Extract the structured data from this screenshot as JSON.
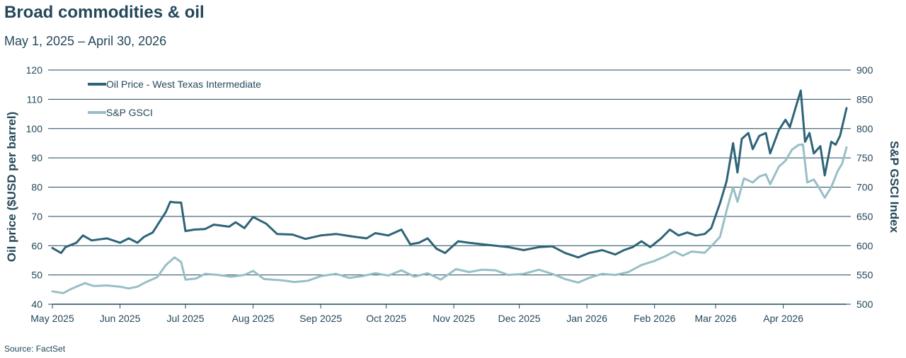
{
  "header": {
    "title": "Broad commodities & oil",
    "subtitle": "May 1, 2025 – April 30, 2026"
  },
  "footer": {
    "source": "Source: FactSet"
  },
  "colors": {
    "oil": "#2e6478",
    "gsci": "#98bfc6",
    "grid": "#1f4a5c",
    "text": "#24485a"
  },
  "chart_data": {
    "type": "line",
    "y_left": {
      "label": "Oil price ($USD per barrel)",
      "range": [
        40,
        120
      ],
      "ticks": [
        40,
        50,
        60,
        70,
        80,
        90,
        100,
        110,
        120
      ]
    },
    "y_right": {
      "label": "S&P GSCI Index",
      "range": [
        500,
        900
      ],
      "ticks": [
        500,
        550,
        600,
        650,
        700,
        750,
        800,
        850,
        900
      ]
    },
    "x_range": [
      "2025-05-01",
      "2026-04-30"
    ],
    "x_ticks": [
      {
        "date": "2025-05-01",
        "label": "May 2025"
      },
      {
        "date": "2025-06-01",
        "label": "Jun 2025"
      },
      {
        "date": "2025-07-01",
        "label": "Jul 2025"
      },
      {
        "date": "2025-08-01",
        "label": "Aug 2025"
      },
      {
        "date": "2025-09-01",
        "label": "Sep 2025"
      },
      {
        "date": "2025-10-01",
        "label": "Oct 2025"
      },
      {
        "date": "2025-11-01",
        "label": "Nov 2025"
      },
      {
        "date": "2025-12-01",
        "label": "Dec 2025"
      },
      {
        "date": "2026-01-01",
        "label": "Jan 2026"
      },
      {
        "date": "2026-02-01",
        "label": "Feb 2026"
      },
      {
        "date": "2026-03-01",
        "label": "Mar 2026"
      },
      {
        "date": "2026-04-01",
        "label": "Apr 2026"
      }
    ],
    "grid": true,
    "legend_position": "top-left",
    "series": [
      {
        "name": "Oil Price - West Texas Intermediate",
        "axis": "left",
        "points": [
          [
            "2025-05-01",
            59.2
          ],
          [
            "2025-05-05",
            57.5
          ],
          [
            "2025-05-07",
            59.5
          ],
          [
            "2025-05-12",
            61.0
          ],
          [
            "2025-05-15",
            63.5
          ],
          [
            "2025-05-19",
            61.8
          ],
          [
            "2025-05-26",
            62.5
          ],
          [
            "2025-06-01",
            61.0
          ],
          [
            "2025-06-05",
            62.5
          ],
          [
            "2025-06-09",
            61.0
          ],
          [
            "2025-06-12",
            63.0
          ],
          [
            "2025-06-16",
            64.5
          ],
          [
            "2025-06-19",
            68.0
          ],
          [
            "2025-06-22",
            71.5
          ],
          [
            "2025-06-24",
            75.0
          ],
          [
            "2025-06-26",
            74.8
          ],
          [
            "2025-06-29",
            74.7
          ],
          [
            "2025-07-01",
            65.0
          ],
          [
            "2025-07-05",
            65.5
          ],
          [
            "2025-07-10",
            65.7
          ],
          [
            "2025-07-14",
            67.2
          ],
          [
            "2025-07-21",
            66.5
          ],
          [
            "2025-07-24",
            68.0
          ],
          [
            "2025-07-28",
            66.0
          ],
          [
            "2025-08-01",
            69.8
          ],
          [
            "2025-08-07",
            67.5
          ],
          [
            "2025-08-12",
            64.0
          ],
          [
            "2025-08-19",
            63.8
          ],
          [
            "2025-08-25",
            62.3
          ],
          [
            "2025-09-01",
            63.5
          ],
          [
            "2025-09-08",
            64.0
          ],
          [
            "2025-09-15",
            63.2
          ],
          [
            "2025-09-22",
            62.5
          ],
          [
            "2025-09-26",
            64.3
          ],
          [
            "2025-10-02",
            63.5
          ],
          [
            "2025-10-08",
            65.5
          ],
          [
            "2025-10-12",
            60.5
          ],
          [
            "2025-10-16",
            61.0
          ],
          [
            "2025-10-20",
            62.5
          ],
          [
            "2025-10-24",
            59.0
          ],
          [
            "2025-10-28",
            57.5
          ],
          [
            "2025-11-03",
            61.5
          ],
          [
            "2025-11-08",
            61.0
          ],
          [
            "2025-11-14",
            60.5
          ],
          [
            "2025-11-20",
            60.0
          ],
          [
            "2025-11-26",
            59.5
          ],
          [
            "2025-12-03",
            58.5
          ],
          [
            "2025-12-10",
            59.5
          ],
          [
            "2025-12-16",
            59.8
          ],
          [
            "2025-12-22",
            57.5
          ],
          [
            "2025-12-28",
            56.0
          ],
          [
            "2026-01-02",
            57.5
          ],
          [
            "2026-01-08",
            58.5
          ],
          [
            "2026-01-14",
            57.0
          ],
          [
            "2026-01-18",
            58.5
          ],
          [
            "2026-01-22",
            59.5
          ],
          [
            "2026-01-26",
            61.5
          ],
          [
            "2026-01-30",
            59.5
          ],
          [
            "2026-02-04",
            62.5
          ],
          [
            "2026-02-08",
            65.5
          ],
          [
            "2026-02-12",
            63.5
          ],
          [
            "2026-02-16",
            64.5
          ],
          [
            "2026-02-20",
            63.5
          ],
          [
            "2026-02-24",
            64.0
          ],
          [
            "2026-02-27",
            66.0
          ],
          [
            "2026-03-03",
            74.5
          ],
          [
            "2026-03-06",
            82.0
          ],
          [
            "2026-03-09",
            95.0
          ],
          [
            "2026-03-11",
            85.0
          ],
          [
            "2026-03-13",
            96.5
          ],
          [
            "2026-03-16",
            98.5
          ],
          [
            "2026-03-18",
            93.0
          ],
          [
            "2026-03-21",
            97.5
          ],
          [
            "2026-03-24",
            98.5
          ],
          [
            "2026-03-26",
            91.5
          ],
          [
            "2026-03-30",
            99.5
          ],
          [
            "2026-04-02",
            103.0
          ],
          [
            "2026-04-04",
            100.5
          ],
          [
            "2026-04-07",
            108.0
          ],
          [
            "2026-04-09",
            113.0
          ],
          [
            "2026-04-11",
            95.5
          ],
          [
            "2026-04-13",
            98.5
          ],
          [
            "2026-04-15",
            91.5
          ],
          [
            "2026-04-18",
            94.0
          ],
          [
            "2026-04-20",
            84.0
          ],
          [
            "2026-04-23",
            95.5
          ],
          [
            "2026-04-25",
            94.5
          ],
          [
            "2026-04-27",
            97.5
          ],
          [
            "2026-04-30",
            107.0
          ]
        ]
      },
      {
        "name": "S&P GSCI",
        "axis": "right",
        "points": [
          [
            "2025-05-01",
            522
          ],
          [
            "2025-05-06",
            519
          ],
          [
            "2025-05-09",
            525
          ],
          [
            "2025-05-12",
            530
          ],
          [
            "2025-05-16",
            536
          ],
          [
            "2025-05-20",
            531
          ],
          [
            "2025-05-26",
            532
          ],
          [
            "2025-06-01",
            530
          ],
          [
            "2025-06-05",
            527
          ],
          [
            "2025-06-09",
            530
          ],
          [
            "2025-06-13",
            538
          ],
          [
            "2025-06-18",
            546
          ],
          [
            "2025-06-22",
            567
          ],
          [
            "2025-06-26",
            580
          ],
          [
            "2025-06-29",
            572
          ],
          [
            "2025-07-01",
            542
          ],
          [
            "2025-07-06",
            544
          ],
          [
            "2025-07-10",
            552
          ],
          [
            "2025-07-16",
            550
          ],
          [
            "2025-07-22",
            547
          ],
          [
            "2025-07-28",
            550
          ],
          [
            "2025-08-01",
            557
          ],
          [
            "2025-08-06",
            543
          ],
          [
            "2025-08-14",
            541
          ],
          [
            "2025-08-20",
            538
          ],
          [
            "2025-08-26",
            540
          ],
          [
            "2025-09-01",
            548
          ],
          [
            "2025-09-08",
            552
          ],
          [
            "2025-09-14",
            545
          ],
          [
            "2025-09-20",
            548
          ],
          [
            "2025-09-26",
            553
          ],
          [
            "2025-10-02",
            549
          ],
          [
            "2025-10-08",
            558
          ],
          [
            "2025-10-14",
            547
          ],
          [
            "2025-10-20",
            553
          ],
          [
            "2025-10-26",
            542
          ],
          [
            "2025-11-02",
            560
          ],
          [
            "2025-11-08",
            555
          ],
          [
            "2025-11-14",
            559
          ],
          [
            "2025-11-20",
            558
          ],
          [
            "2025-11-26",
            550
          ],
          [
            "2025-12-03",
            552
          ],
          [
            "2025-12-10",
            559
          ],
          [
            "2025-12-16",
            552
          ],
          [
            "2025-12-22",
            543
          ],
          [
            "2025-12-28",
            537
          ],
          [
            "2026-01-02",
            545
          ],
          [
            "2026-01-08",
            552
          ],
          [
            "2026-01-14",
            550
          ],
          [
            "2026-01-20",
            555
          ],
          [
            "2026-01-26",
            567
          ],
          [
            "2026-02-01",
            574
          ],
          [
            "2026-02-06",
            582
          ],
          [
            "2026-02-10",
            590
          ],
          [
            "2026-02-14",
            583
          ],
          [
            "2026-02-18",
            590
          ],
          [
            "2026-02-24",
            588
          ],
          [
            "2026-02-28",
            603
          ],
          [
            "2026-03-03",
            615
          ],
          [
            "2026-03-06",
            660
          ],
          [
            "2026-03-09",
            700
          ],
          [
            "2026-03-11",
            675
          ],
          [
            "2026-03-14",
            715
          ],
          [
            "2026-03-18",
            708
          ],
          [
            "2026-03-21",
            718
          ],
          [
            "2026-03-24",
            722
          ],
          [
            "2026-03-26",
            705
          ],
          [
            "2026-03-30",
            735
          ],
          [
            "2026-04-02",
            745
          ],
          [
            "2026-04-05",
            764
          ],
          [
            "2026-04-08",
            772
          ],
          [
            "2026-04-10",
            773
          ],
          [
            "2026-04-12",
            708
          ],
          [
            "2026-04-15",
            713
          ],
          [
            "2026-04-18",
            695
          ],
          [
            "2026-04-20",
            682
          ],
          [
            "2026-04-23",
            700
          ],
          [
            "2026-04-26",
            728
          ],
          [
            "2026-04-28",
            740
          ],
          [
            "2026-04-30",
            768
          ]
        ]
      }
    ]
  }
}
